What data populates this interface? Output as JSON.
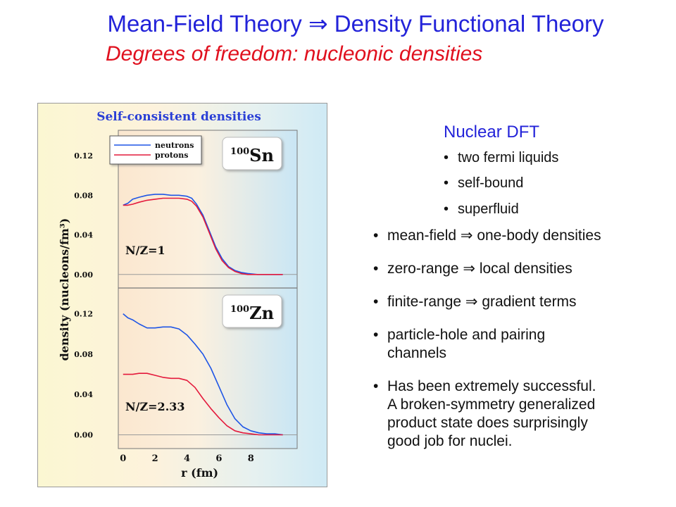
{
  "slide": {
    "title": "Mean-Field Theory ⇒ Density Functional Theory",
    "subtitle": "Degrees of freedom: nucleonic densities"
  },
  "nuclear_dft": {
    "heading": "Nuclear DFT",
    "items": [
      "two fermi liquids",
      "self-bound",
      "superfluid"
    ]
  },
  "points": [
    [
      "mean-field  ⇒ one-body densities"
    ],
    [
      "zero-range ⇒ local densities"
    ],
    [
      "finite-range ⇒ gradient terms"
    ],
    [
      "particle-hole and pairing",
      "channels"
    ],
    [
      "Has been extremely successful.",
      "A broken-symmetry generalized",
      "product state does surprisingly",
      "good job for nuclei."
    ]
  ],
  "chart_data": {
    "type": "line",
    "title": "Self-consistent densities",
    "xlabel": "r (fm)",
    "ylabel": "density (nucleons/fm³)",
    "x_ticks": [
      "0",
      "2",
      "4",
      "6",
      "8"
    ],
    "y_ticks": [
      "0.00",
      "0.04",
      "0.08",
      "0.12"
    ],
    "xlim": [
      -0.3,
      10.9
    ],
    "ylim": [
      -0.008,
      0.14
    ],
    "legend": {
      "position": "top-left",
      "entries": [
        "neutrons",
        "protons"
      ]
    },
    "colors": {
      "neutrons": "#1e55e6",
      "protons": "#e41a3c"
    },
    "panels": [
      {
        "nucleus_mass": "100",
        "nucleus_symbol": "Sn",
        "ratio_label": "N/Z=1",
        "x": [
          0,
          0.3,
          0.6,
          1.0,
          1.5,
          2.0,
          2.5,
          3.0,
          3.5,
          4.0,
          4.3,
          4.6,
          5.0,
          5.4,
          5.8,
          6.2,
          6.6,
          7.0,
          7.4,
          7.8,
          8.4,
          9.0,
          10.0
        ],
        "series": [
          {
            "name": "neutrons",
            "values": [
              0.07,
              0.072,
              0.076,
              0.078,
              0.08,
              0.081,
              0.081,
              0.08,
              0.08,
              0.079,
              0.077,
              0.071,
              0.06,
              0.044,
              0.028,
              0.016,
              0.008,
              0.004,
              0.002,
              0.001,
              0.0,
              0.0,
              0.0
            ]
          },
          {
            "name": "protons",
            "values": [
              0.07,
              0.07,
              0.071,
              0.073,
              0.075,
              0.076,
              0.077,
              0.077,
              0.077,
              0.076,
              0.074,
              0.069,
              0.058,
              0.042,
              0.026,
              0.014,
              0.007,
              0.003,
              0.001,
              0.0,
              0.0,
              0.0,
              0.0
            ]
          }
        ]
      },
      {
        "nucleus_mass": "100",
        "nucleus_symbol": "Zn",
        "ratio_label": "N/Z=2.33",
        "x": [
          0,
          0.3,
          0.6,
          1.0,
          1.5,
          2.0,
          2.5,
          3.0,
          3.5,
          4.0,
          4.5,
          5.0,
          5.5,
          6.0,
          6.5,
          7.0,
          7.5,
          8.0,
          8.5,
          9.0,
          9.5,
          10.0
        ],
        "series": [
          {
            "name": "neutrons",
            "values": [
              0.12,
              0.116,
              0.114,
              0.11,
              0.106,
              0.106,
              0.107,
              0.107,
              0.105,
              0.099,
              0.09,
              0.08,
              0.066,
              0.048,
              0.03,
              0.016,
              0.008,
              0.004,
              0.002,
              0.001,
              0.001,
              0.0
            ]
          },
          {
            "name": "protons",
            "values": [
              0.06,
              0.06,
              0.06,
              0.061,
              0.061,
              0.059,
              0.057,
              0.056,
              0.056,
              0.054,
              0.047,
              0.036,
              0.026,
              0.017,
              0.009,
              0.004,
              0.002,
              0.001,
              0.0,
              0.0,
              0.0,
              0.0
            ]
          }
        ]
      }
    ]
  }
}
